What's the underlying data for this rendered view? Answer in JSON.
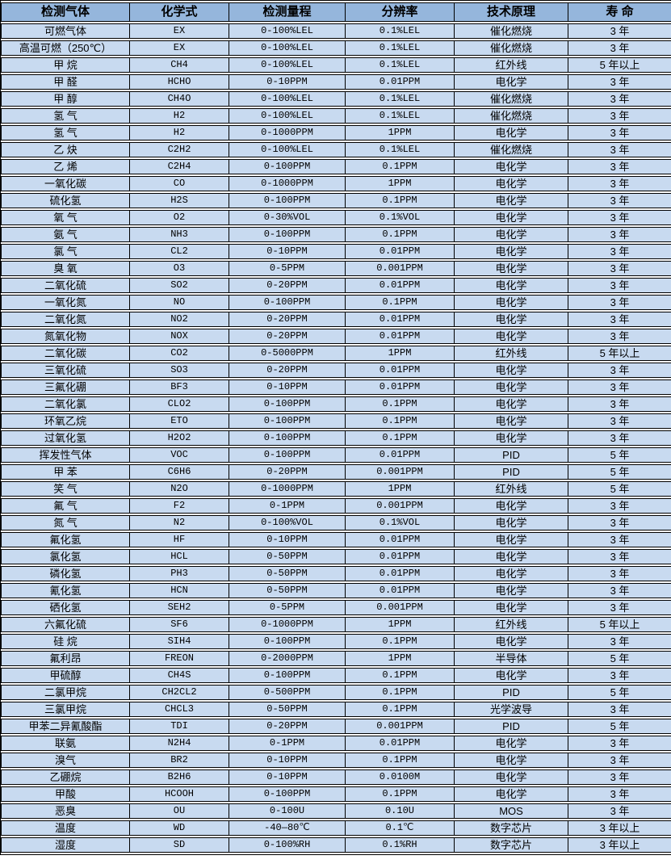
{
  "table": {
    "headers": [
      "检测气体",
      "化学式",
      "检测量程",
      "分辨率",
      "技术原理",
      "寿 命"
    ],
    "rows": [
      [
        "可燃气体",
        "EX",
        "0-100%LEL",
        "0.1%LEL",
        "催化燃烧",
        "3 年"
      ],
      [
        "高温可燃（250℃）",
        "EX",
        "0-100%LEL",
        "0.1%LEL",
        "催化燃烧",
        "3 年"
      ],
      [
        "甲 烷",
        "CH4",
        "0-100%LEL",
        "0.1%LEL",
        "红外线",
        "5 年以上"
      ],
      [
        "甲 醛",
        "HCHO",
        "0-10PPM",
        "0.01PPM",
        "电化学",
        "3 年"
      ],
      [
        "甲 醇",
        "CH4O",
        "0-100%LEL",
        "0.1%LEL",
        "催化燃烧",
        "3 年"
      ],
      [
        "氢 气",
        "H2",
        "0-100%LEL",
        "0.1%LEL",
        "催化燃烧",
        "3 年"
      ],
      [
        "氢 气",
        "H2",
        "0-1000PPM",
        "1PPM",
        "电化学",
        "3 年"
      ],
      [
        "乙 炔",
        "C2H2",
        "0-100%LEL",
        "0.1%LEL",
        "催化燃烧",
        "3 年"
      ],
      [
        "乙 烯",
        "C2H4",
        "0-100PPM",
        "0.1PPM",
        "电化学",
        "3 年"
      ],
      [
        "一氧化碳",
        "CO",
        "0-1000PPM",
        "1PPM",
        "电化学",
        "3 年"
      ],
      [
        "硫化氢",
        "H2S",
        "0-100PPM",
        "0.1PPM",
        "电化学",
        "3 年"
      ],
      [
        "氧 气",
        "O2",
        "0-30%VOL",
        "0.1%VOL",
        "电化学",
        "3 年"
      ],
      [
        "氨 气",
        "NH3",
        "0-100PPM",
        "0.1PPM",
        "电化学",
        "3 年"
      ],
      [
        "氯 气",
        "CL2",
        "0-10PPM",
        "0.01PPM",
        "电化学",
        "3 年"
      ],
      [
        "臭 氧",
        "O3",
        "0-5PPM",
        "0.001PPM",
        "电化学",
        "3 年"
      ],
      [
        "二氧化硫",
        "SO2",
        "0-20PPM",
        "0.01PPM",
        "电化学",
        "3 年"
      ],
      [
        "一氧化氮",
        "NO",
        "0-100PPM",
        "0.1PPM",
        "电化学",
        "3 年"
      ],
      [
        "二氧化氮",
        "NO2",
        "0-20PPM",
        "0.01PPM",
        "电化学",
        "3 年"
      ],
      [
        "氮氧化物",
        "NOX",
        "0-20PPM",
        "0.01PPM",
        "电化学",
        "3 年"
      ],
      [
        "二氧化碳",
        "CO2",
        "0-5000PPM",
        "1PPM",
        "红外线",
        "5 年以上"
      ],
      [
        "三氧化硫",
        "SO3",
        "0-20PPM",
        "0.01PPM",
        "电化学",
        "3 年"
      ],
      [
        "三氟化硼",
        "BF3",
        "0-10PPM",
        "0.01PPM",
        "电化学",
        "3 年"
      ],
      [
        "二氧化氯",
        "CLO2",
        "0-100PPM",
        "0.1PPM",
        "电化学",
        "3 年"
      ],
      [
        "环氧乙烷",
        "ETO",
        "0-100PPM",
        "0.1PPM",
        "电化学",
        "3 年"
      ],
      [
        "过氧化氢",
        "H2O2",
        "0-100PPM",
        "0.1PPM",
        "电化学",
        "3 年"
      ],
      [
        "挥发性气体",
        "VOC",
        "0-100PPM",
        "0.01PPM",
        "PID",
        "5 年"
      ],
      [
        "甲 苯",
        "C6H6",
        "0-20PPM",
        "0.001PPM",
        "PID",
        "5 年"
      ],
      [
        "笑 气",
        "N2O",
        "0-1000PPM",
        "1PPM",
        "红外线",
        "5 年"
      ],
      [
        "氟 气",
        "F2",
        "0-1PPM",
        "0.001PPM",
        "电化学",
        "3 年"
      ],
      [
        "氮 气",
        "N2",
        "0-100%VOL",
        "0.1%VOL",
        "电化学",
        "3 年"
      ],
      [
        "氟化氢",
        "HF",
        "0-10PPM",
        "0.01PPM",
        "电化学",
        "3 年"
      ],
      [
        "氯化氢",
        "HCL",
        "0-50PPM",
        "0.01PPM",
        "电化学",
        "3 年"
      ],
      [
        "磷化氢",
        "PH3",
        "0-50PPM",
        "0.01PPM",
        "电化学",
        "3 年"
      ],
      [
        "氰化氢",
        "HCN",
        "0-50PPM",
        "0.01PPM",
        "电化学",
        "3 年"
      ],
      [
        "硒化氢",
        "SEH2",
        "0-5PPM",
        "0.001PPM",
        "电化学",
        "3 年"
      ],
      [
        "六氟化硫",
        "SF6",
        "0-1000PPM",
        "1PPM",
        "红外线",
        "5 年以上"
      ],
      [
        "硅 烷",
        "SIH4",
        "0-100PPM",
        "0.1PPM",
        "电化学",
        "3 年"
      ],
      [
        "氟利昂",
        "FREON",
        "0-2000PPM",
        "1PPM",
        "半导体",
        "5 年"
      ],
      [
        "甲硫醇",
        "CH4S",
        "0-100PPM",
        "0.1PPM",
        "电化学",
        "3 年"
      ],
      [
        "二氯甲烷",
        "CH2CL2",
        "0-500PPM",
        "0.1PPM",
        "PID",
        "5 年"
      ],
      [
        "三氯甲烷",
        "CHCL3",
        "0-50PPM",
        "0.1PPM",
        "光学波导",
        "3 年"
      ],
      [
        "甲苯二异氰酸酯",
        "TDI",
        "0-20PPM",
        "0.001PPM",
        "PID",
        "5 年"
      ],
      [
        "联氨",
        "N2H4",
        "0-1PPM",
        "0.01PPM",
        "电化学",
        "3 年"
      ],
      [
        "溴气",
        "BR2",
        "0-10PPM",
        "0.1PPM",
        "电化学",
        "3 年"
      ],
      [
        "乙硼烷",
        "B2H6",
        "0-10PPM",
        "0.0100M",
        "电化学",
        "3 年"
      ],
      [
        "甲酸",
        "HCOOH",
        "0-100PPM",
        "0.1PPM",
        "电化学",
        "3 年"
      ],
      [
        "恶臭",
        "OU",
        "0-100U",
        "0.10U",
        "MOS",
        "3 年"
      ],
      [
        "温度",
        "WD",
        "-40—80℃",
        "0.1℃",
        "数字芯片",
        "3 年以上"
      ],
      [
        "湿度",
        "SD",
        "0-100%RH",
        "0.1%RH",
        "数字芯片",
        "3 年以上"
      ]
    ]
  },
  "colors": {
    "header_bg": "#95b6dc",
    "row_bg": "#c8daf0",
    "border": "#000000",
    "row_gap": "#ffffff",
    "text": "#000000"
  }
}
